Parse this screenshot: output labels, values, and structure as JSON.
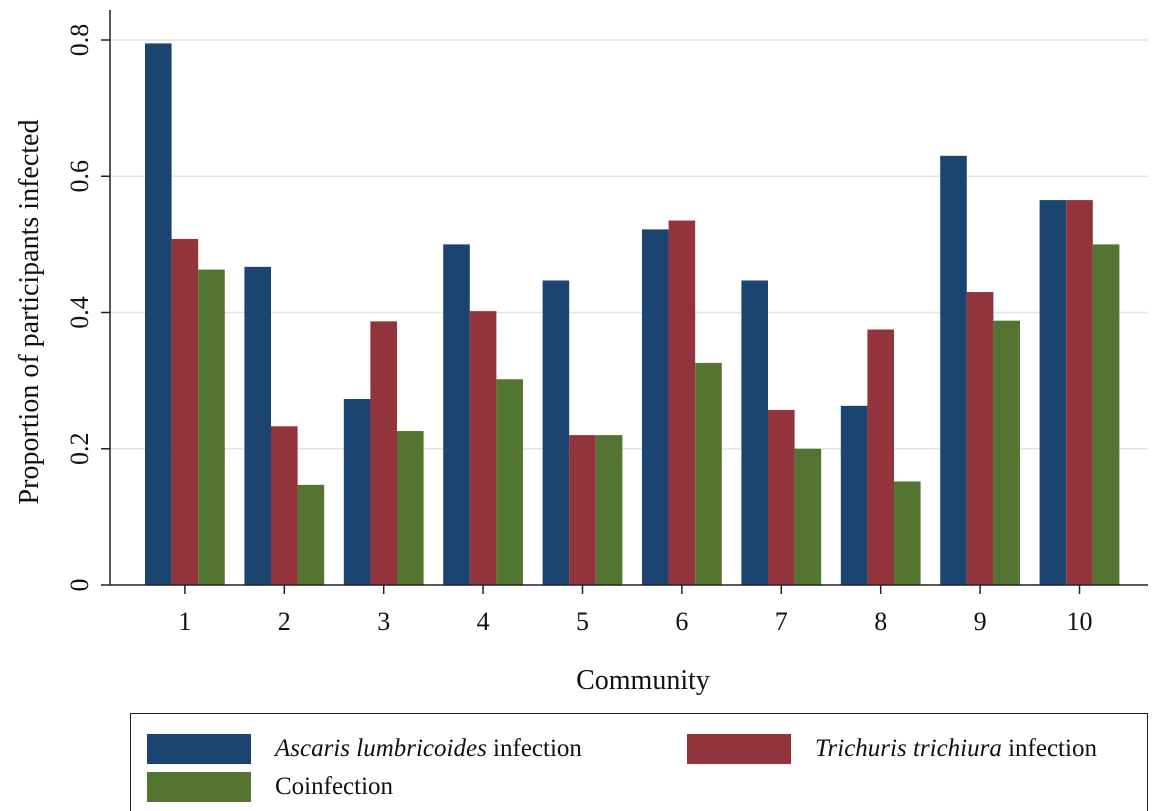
{
  "chart_data": {
    "type": "bar",
    "categories": [
      "1",
      "2",
      "3",
      "4",
      "5",
      "6",
      "7",
      "8",
      "9",
      "10"
    ],
    "series": [
      {
        "key": "ascaris",
        "name_italic": "Ascaris lumbricoides",
        "name_suffix": " infection",
        "color": "#1b4570",
        "values": [
          0.795,
          0.467,
          0.273,
          0.5,
          0.447,
          0.522,
          0.447,
          0.263,
          0.63,
          0.565
        ]
      },
      {
        "key": "trichuris",
        "name_italic": "Trichuris trichiura",
        "name_suffix": " infection",
        "color": "#93333c",
        "values": [
          0.508,
          0.233,
          0.387,
          0.402,
          0.22,
          0.535,
          0.257,
          0.375,
          0.43,
          0.565
        ]
      },
      {
        "key": "coinfection",
        "name_italic": "",
        "name_suffix": "Coinfection",
        "color": "#547531",
        "values": [
          0.463,
          0.147,
          0.226,
          0.302,
          0.22,
          0.326,
          0.2,
          0.152,
          0.388,
          0.5
        ]
      }
    ],
    "xlabel": "Community",
    "ylabel": "Proportion of participants infected",
    "ylim": [
      0,
      0.8
    ],
    "yticks": [
      0,
      0.2,
      0.4,
      0.6,
      0.8
    ],
    "ytick_labels": [
      "0",
      "0.2",
      "0.4",
      "0.6",
      "0.8"
    ],
    "grid": "horizontal",
    "legend_position": "bottom"
  }
}
